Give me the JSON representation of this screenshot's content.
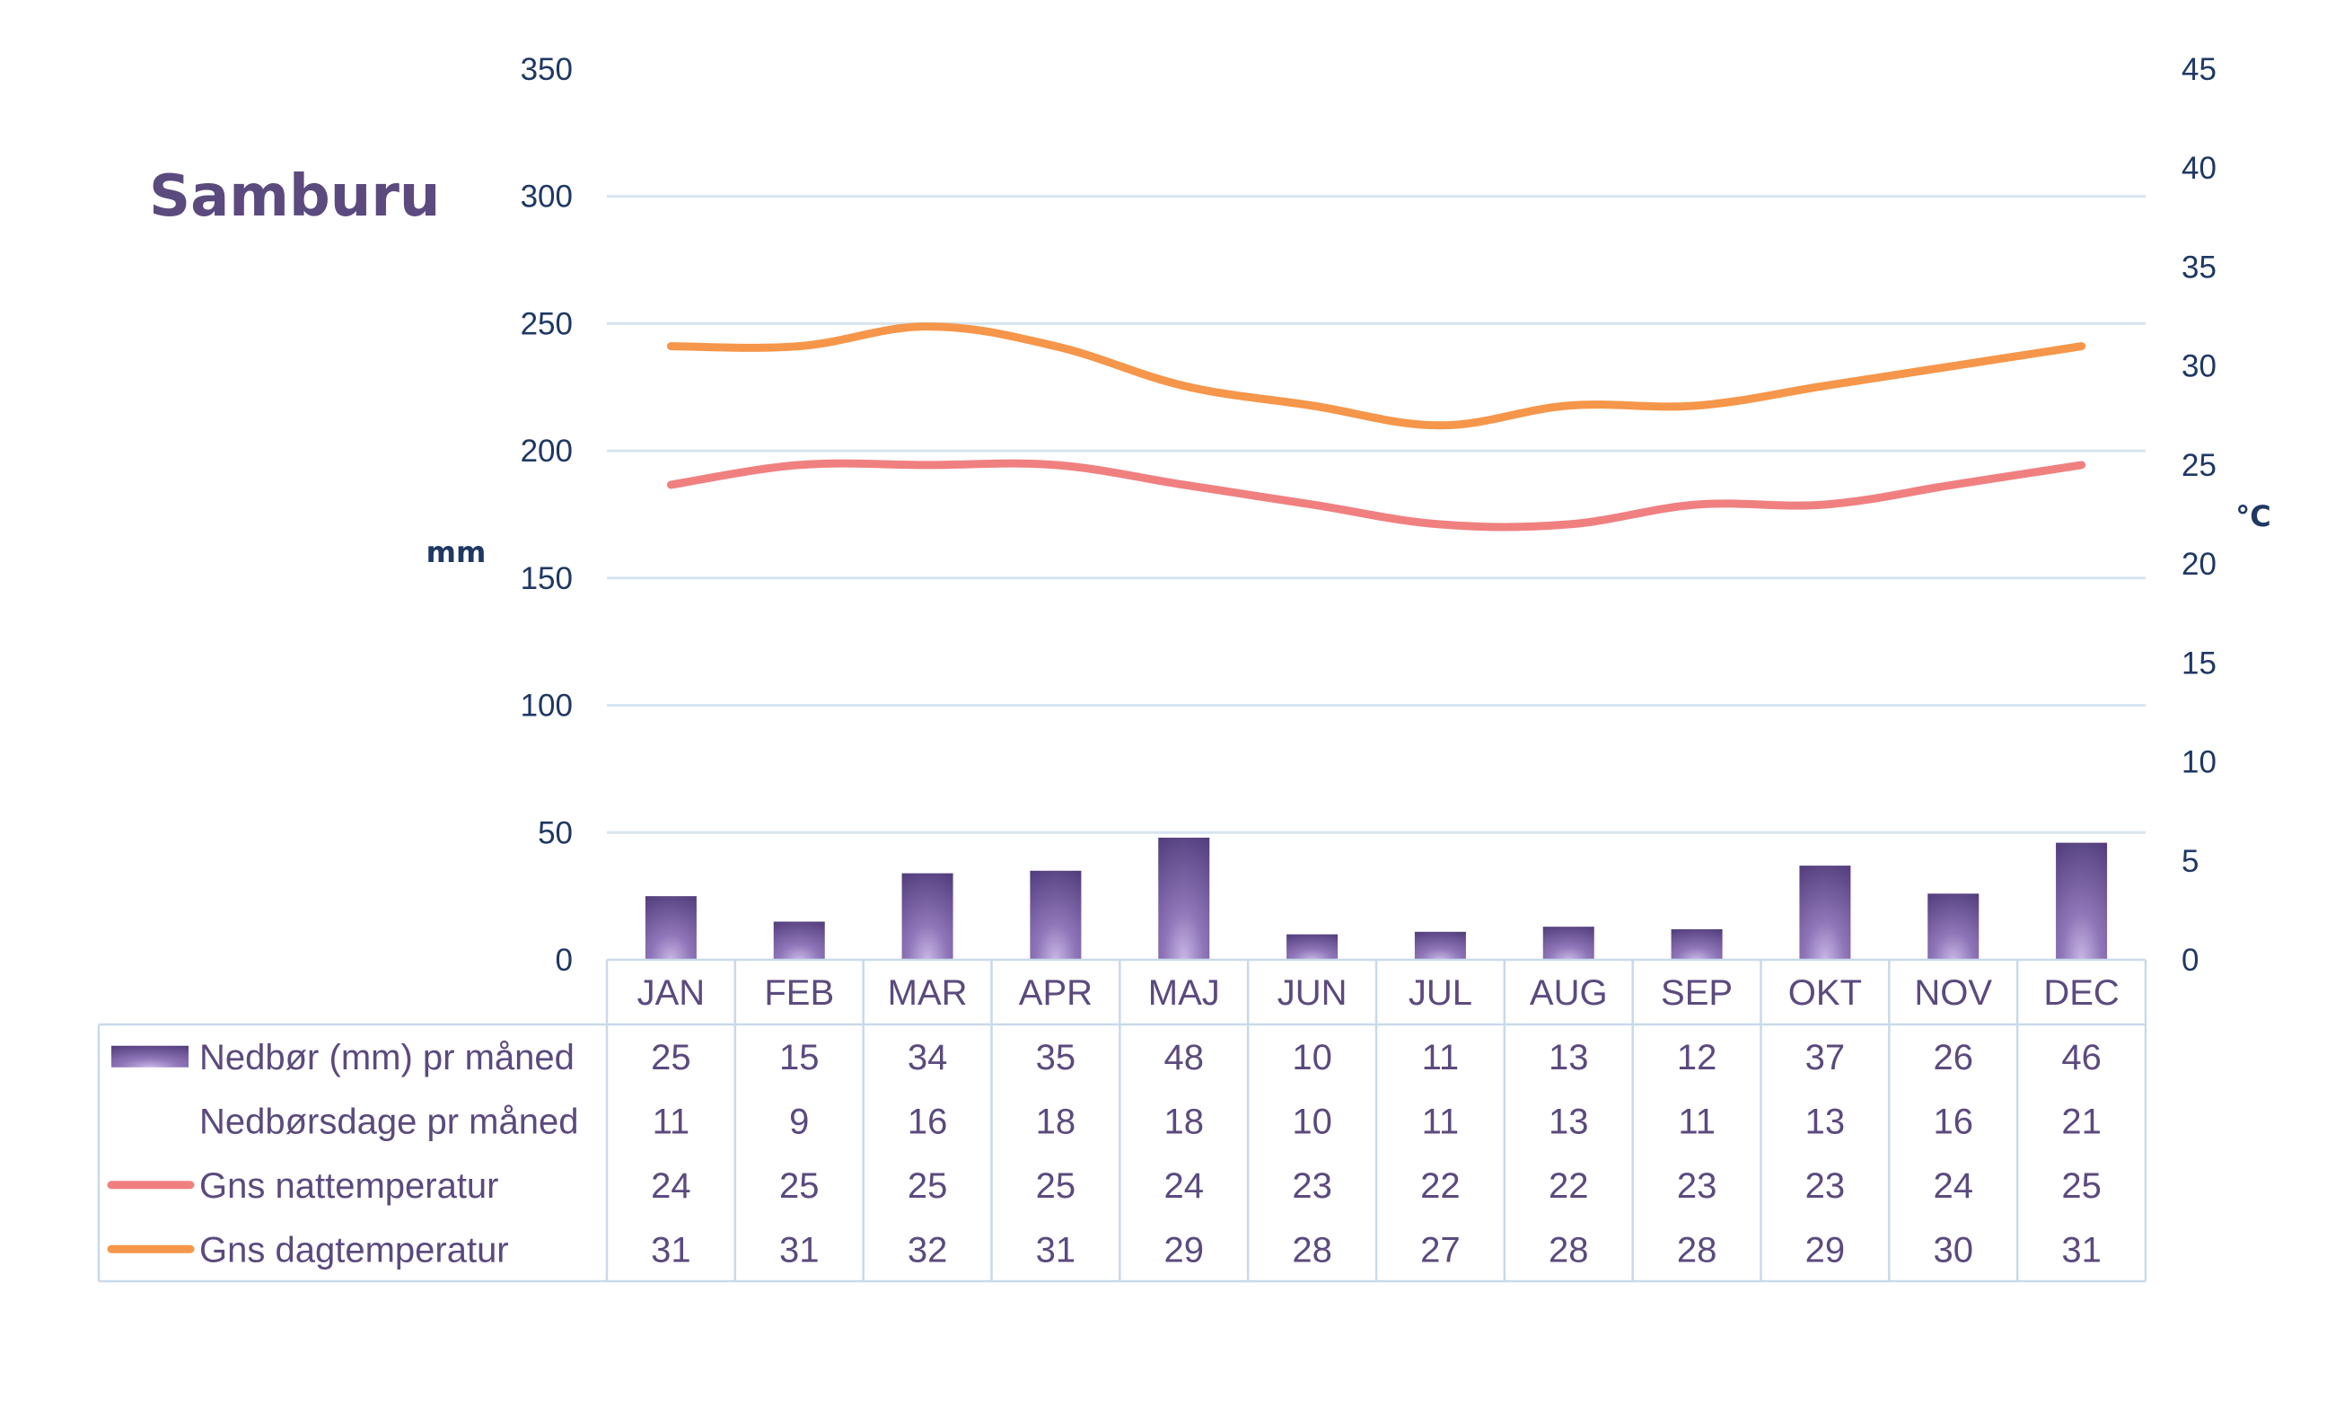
{
  "chart_data": {
    "type": "bar",
    "title": "Samburu",
    "categories": [
      "JAN",
      "FEB",
      "MAR",
      "APR",
      "MAJ",
      "JUN",
      "JUL",
      "AUG",
      "SEP",
      "OKT",
      "NOV",
      "DEC"
    ],
    "y_left": {
      "label": "mm",
      "range": [
        0,
        350
      ],
      "ticks": [
        0,
        50,
        100,
        150,
        200,
        250,
        300,
        350
      ]
    },
    "y_right": {
      "label": "°C",
      "range": [
        0,
        45
      ],
      "ticks": [
        0,
        5,
        10,
        15,
        20,
        25,
        30,
        35,
        40,
        45
      ]
    },
    "grid": true,
    "legend": "data-table",
    "series": [
      {
        "name": "Nedbør (mm) pr måned",
        "kind": "bar",
        "axis": "left",
        "color": "#5e4a86",
        "values": [
          25,
          15,
          34,
          35,
          48,
          10,
          11,
          13,
          12,
          37,
          26,
          46
        ]
      },
      {
        "name": "Nedbørsdage pr måned",
        "kind": "table-only",
        "values": [
          11,
          9,
          16,
          18,
          18,
          10,
          11,
          13,
          11,
          13,
          16,
          21
        ]
      },
      {
        "name": "Gns nattemperatur",
        "kind": "line",
        "axis": "right",
        "color": "#f08080",
        "values": [
          24,
          25,
          25,
          25,
          24,
          23,
          22,
          22,
          23,
          23,
          24,
          25
        ]
      },
      {
        "name": "Gns dagtemperatur",
        "kind": "line",
        "axis": "right",
        "color": "#f5964a",
        "values": [
          31,
          31,
          32,
          31,
          29,
          28,
          27,
          28,
          28,
          29,
          30,
          31
        ]
      }
    ]
  }
}
